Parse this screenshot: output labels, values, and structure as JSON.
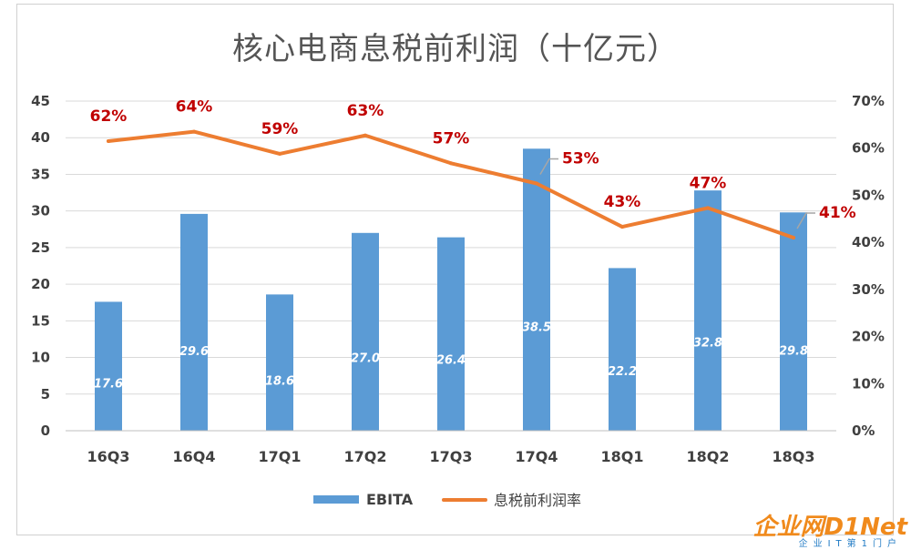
{
  "chart_data": {
    "type": "bar+line",
    "title": "核心电商息税前利润（十亿元）",
    "categories": [
      "16Q3",
      "16Q4",
      "17Q1",
      "17Q2",
      "17Q3",
      "17Q4",
      "18Q1",
      "18Q2",
      "18Q3"
    ],
    "series": [
      {
        "name": "EBITA",
        "type": "bar",
        "axis": "left",
        "color": "#5b9bd5",
        "values": [
          17.6,
          29.6,
          18.6,
          27.0,
          26.4,
          38.5,
          22.2,
          32.8,
          29.8
        ],
        "labels": [
          "17.6",
          "29.6",
          "18.6",
          "27.0",
          "26.4",
          "38.5",
          "22.2",
          "32.8",
          "29.8"
        ]
      },
      {
        "name": "息税前利润率",
        "type": "line",
        "axis": "right",
        "color": "#ed7d31",
        "values": [
          61.5,
          63.5,
          58.8,
          62.7,
          56.8,
          52.5,
          43.3,
          47.3,
          41.0
        ],
        "labels": [
          "62%",
          "64%",
          "59%",
          "63%",
          "57%",
          "53%",
          "43%",
          "47%",
          "41%"
        ]
      }
    ],
    "y_left": {
      "min": 0,
      "max": 45,
      "step": 5,
      "ticks": [
        "0",
        "5",
        "10",
        "15",
        "20",
        "25",
        "30",
        "35",
        "40",
        "45"
      ]
    },
    "y_right": {
      "min": 0,
      "max": 70,
      "step": 10,
      "ticks": [
        "0%",
        "10%",
        "20%",
        "30%",
        "40%",
        "50%",
        "60%",
        "70%"
      ]
    },
    "grid": true,
    "legend_position": "bottom"
  },
  "watermark": {
    "main": "企业网D1Net",
    "sub": "企业IT第1门户"
  }
}
